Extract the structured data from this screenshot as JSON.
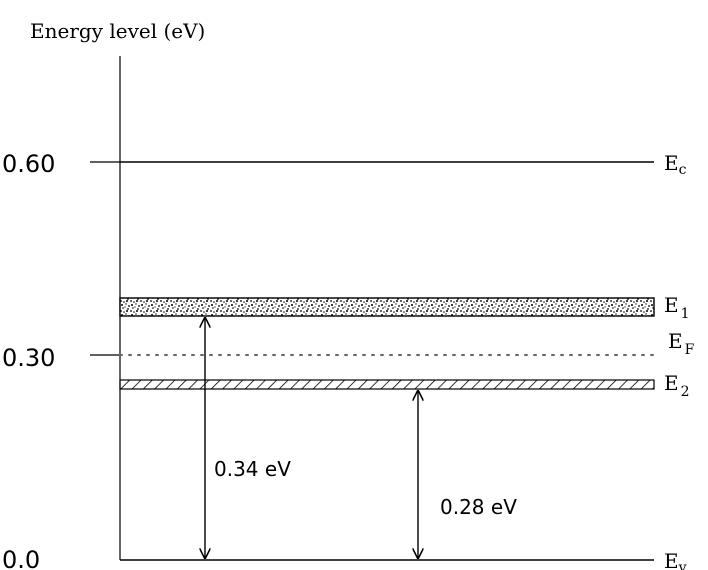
{
  "title": "Energy level (eV)",
  "axis": {
    "ticks": [
      {
        "label": "0.60",
        "value": 0.6
      },
      {
        "label": "0.30",
        "value": 0.3
      },
      {
        "label": "0.0",
        "value": 0.0
      }
    ]
  },
  "levels": {
    "ec": {
      "main": "E",
      "sub": "c",
      "value": 0.6
    },
    "e1": {
      "main": "E",
      "sub": "1",
      "value": 0.34
    },
    "ef": {
      "main": "E",
      "sub": "F",
      "value": 0.3
    },
    "e2": {
      "main": "E",
      "sub": "2",
      "value": 0.28
    },
    "ev": {
      "main": "E",
      "sub": "v",
      "value": 0.0
    }
  },
  "arrows": {
    "a1": {
      "label": "0.34 eV",
      "value": 0.34
    },
    "a2": {
      "label": "0.28 eV",
      "value": 0.28
    }
  }
}
